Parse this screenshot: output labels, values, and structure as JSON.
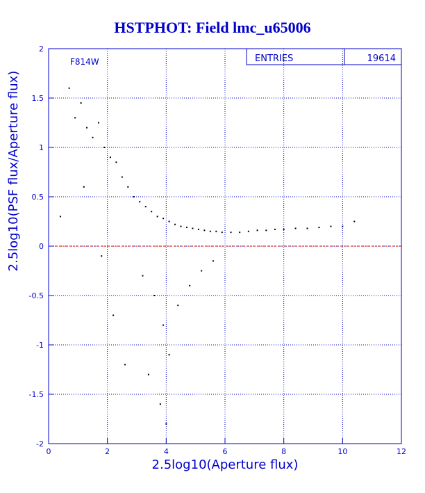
{
  "chart_data": {
    "type": "scatter",
    "title": "HSTPHOT: Field lmc_u65006",
    "xlabel": "2.5log10(Aperture flux)",
    "ylabel": "2.5log10(PSF flux/Aperture flux)",
    "xlim": [
      0,
      12
    ],
    "ylim": [
      -2,
      2
    ],
    "x_ticks": [
      "0",
      "2",
      "4",
      "6",
      "8",
      "10",
      "12"
    ],
    "y_ticks": [
      "-2",
      "-1.5",
      "-1",
      "-0.5",
      "0",
      "0.5",
      "1",
      "1.5",
      "2"
    ],
    "grid": true,
    "reference_line": {
      "y": 0,
      "color": "#cc0000",
      "style": "dashed"
    },
    "filter_label": "F814W",
    "stats": {
      "label": "ENTRIES",
      "value": "19614"
    },
    "series": [
      {
        "points": [
          [
            0.7,
            1.6
          ],
          [
            0.9,
            1.3
          ],
          [
            1.1,
            1.45
          ],
          [
            1.3,
            1.2
          ],
          [
            1.5,
            1.1
          ],
          [
            1.7,
            1.25
          ],
          [
            1.9,
            1.0
          ],
          [
            2.1,
            0.9
          ],
          [
            2.3,
            0.85
          ],
          [
            2.5,
            0.7
          ],
          [
            2.7,
            0.6
          ],
          [
            2.9,
            0.5
          ],
          [
            3.1,
            0.45
          ],
          [
            3.3,
            0.4
          ],
          [
            3.5,
            0.35
          ],
          [
            3.7,
            0.3
          ],
          [
            3.9,
            0.28
          ],
          [
            4.1,
            0.25
          ],
          [
            4.3,
            0.22
          ],
          [
            4.5,
            0.2
          ],
          [
            4.7,
            0.19
          ],
          [
            4.9,
            0.18
          ],
          [
            5.1,
            0.17
          ],
          [
            5.3,
            0.16
          ],
          [
            5.5,
            0.15
          ],
          [
            5.7,
            0.15
          ],
          [
            5.9,
            0.14
          ],
          [
            6.2,
            0.14
          ],
          [
            6.5,
            0.14
          ],
          [
            6.8,
            0.15
          ],
          [
            7.1,
            0.16
          ],
          [
            7.4,
            0.16
          ],
          [
            7.7,
            0.17
          ],
          [
            8.0,
            0.17
          ],
          [
            8.4,
            0.18
          ],
          [
            8.8,
            0.18
          ],
          [
            9.2,
            0.19
          ],
          [
            9.6,
            0.2
          ],
          [
            10.0,
            0.2
          ],
          [
            10.4,
            0.25
          ],
          [
            3.2,
            -0.3
          ],
          [
            3.6,
            -0.5
          ],
          [
            3.9,
            -0.8
          ],
          [
            4.1,
            -1.1
          ],
          [
            4.4,
            -0.6
          ],
          [
            4.8,
            -0.4
          ],
          [
            5.2,
            -0.25
          ],
          [
            5.6,
            -0.15
          ],
          [
            3.4,
            -1.3
          ],
          [
            3.8,
            -1.6
          ],
          [
            4.0,
            -1.8
          ],
          [
            2.6,
            -1.2
          ],
          [
            2.2,
            -0.7
          ],
          [
            1.8,
            -0.1
          ],
          [
            1.2,
            0.6
          ],
          [
            0.4,
            0.3
          ]
        ]
      }
    ]
  }
}
